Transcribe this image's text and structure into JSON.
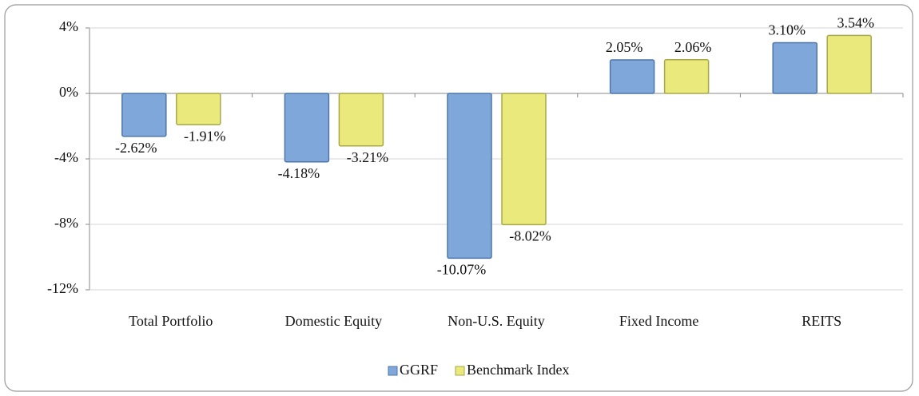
{
  "chart_data": {
    "type": "bar",
    "categories": [
      "Total Portfolio",
      "Domestic Equity",
      "Non-U.S. Equity",
      "Fixed Income",
      "REITS"
    ],
    "series": [
      {
        "name": "GGRF",
        "color": "#7fa7d9",
        "values": [
          -2.62,
          -4.18,
          -10.07,
          2.05,
          3.1
        ],
        "value_labels": [
          "-2.62%",
          "-4.18%",
          "-10.07%",
          "2.05%",
          "3.10%"
        ]
      },
      {
        "name": "Benchmark Index",
        "color": "#e9e97c",
        "values": [
          -1.91,
          -3.21,
          -8.02,
          2.06,
          3.54
        ],
        "value_labels": [
          "-1.91%",
          "-3.21%",
          "-8.02%",
          "2.06%",
          "3.54%"
        ]
      }
    ],
    "ylim": [
      -12,
      4
    ],
    "yticks": [
      {
        "value": -12,
        "label": "-12%"
      },
      {
        "value": -8,
        "label": "-8%"
      },
      {
        "value": -4,
        "label": "-4%"
      },
      {
        "value": 0,
        "label": "0%"
      },
      {
        "value": 4,
        "label": "4%"
      }
    ],
    "grid": true,
    "legend": "bottom"
  }
}
